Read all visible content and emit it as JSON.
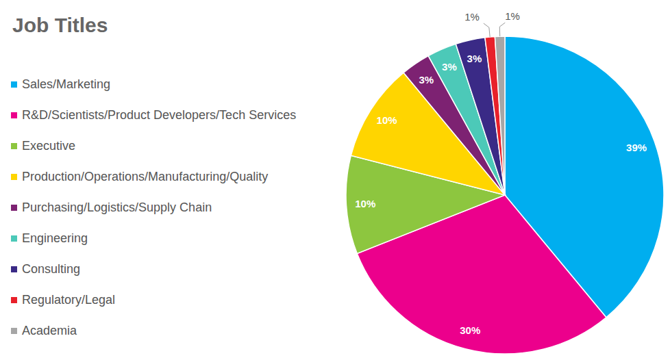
{
  "chart_data": {
    "type": "pie",
    "title": "Job Titles",
    "categories": [
      "Sales/Marketing",
      "R&D/Scientists/Product Developers/Tech Services",
      "Executive",
      "Production/Operations/Manufacturing/Quality",
      "Purchasing/Logistics/Supply Chain",
      "Engineering",
      "Consulting",
      "Regulatory/Legal",
      "Academia"
    ],
    "values": [
      39,
      30,
      10,
      10,
      3,
      3,
      3,
      1,
      1
    ],
    "value_labels": [
      "39%",
      "30%",
      "10%",
      "10%",
      "3%",
      "3%",
      "3%",
      "1%",
      "1%"
    ],
    "colors": [
      "#00aeef",
      "#ec008c",
      "#8dc63f",
      "#ffd500",
      "#7d2272",
      "#4cc9b8",
      "#3a2a86",
      "#e8202a",
      "#a6a6a6"
    ],
    "data_labels": true,
    "legend": "left"
  }
}
